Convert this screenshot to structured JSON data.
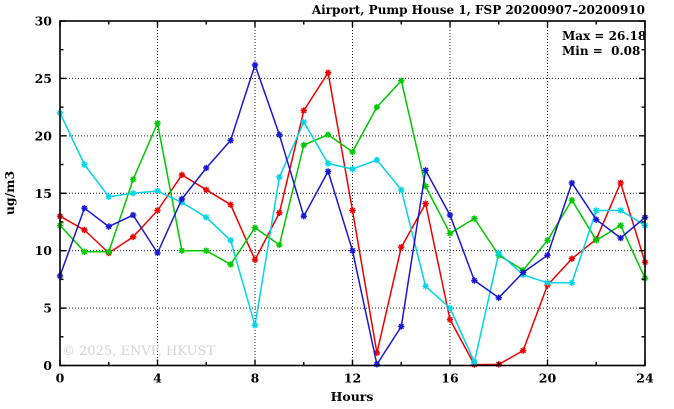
{
  "chart": {
    "title": "Airport, Pump House 1, FSP 20200907–20200910",
    "stats": {
      "max_label": "Max = 26.18",
      "min_label": "Min =  0.08"
    },
    "ylabel": "ug/m3",
    "xlabel": "Hours",
    "watermark": "© 2025, ENVF, HKUST"
  },
  "chart_data": {
    "type": "line",
    "title": "Airport, Pump House 1, FSP 20200907–20200910",
    "xlabel": "Hours",
    "ylabel": "ug/m3",
    "xlim": [
      0,
      24
    ],
    "ylim": [
      0,
      30
    ],
    "x_major_ticks": [
      0,
      4,
      8,
      12,
      16,
      20,
      24
    ],
    "x_minor_ticks": [
      2,
      6,
      10,
      14,
      18,
      22
    ],
    "y_major_ticks": [
      0,
      5,
      10,
      15,
      20,
      25,
      30
    ],
    "y_minor_ticks": [
      2.5,
      7.5,
      12.5,
      17.5,
      22.5,
      27.5
    ],
    "grid": true,
    "legend_position": "none",
    "annotations": {
      "max": 26.18,
      "min": 0.08
    },
    "x": [
      0,
      1,
      2,
      3,
      4,
      5,
      6,
      7,
      8,
      9,
      10,
      11,
      12,
      13,
      14,
      15,
      16,
      17,
      18,
      19,
      20,
      21,
      22,
      23,
      24
    ],
    "series": [
      {
        "name": "red",
        "color": "#ee0000",
        "values": [
          13.0,
          11.8,
          9.8,
          11.2,
          13.5,
          16.6,
          15.3,
          14.0,
          9.2,
          13.3,
          22.2,
          25.5,
          13.5,
          1.1,
          10.3,
          14.1,
          4.0,
          0.08,
          0.1,
          1.3,
          7.0,
          9.3,
          11.0,
          15.9,
          9.0
        ]
      },
      {
        "name": "green",
        "color": "#00c800",
        "values": [
          12.2,
          9.9,
          9.9,
          16.2,
          21.1,
          10.0,
          10.0,
          8.8,
          12.0,
          10.5,
          19.2,
          20.1,
          18.6,
          22.5,
          24.8,
          15.6,
          11.5,
          12.8,
          9.6,
          8.3,
          10.9,
          14.4,
          10.9,
          12.2,
          7.6
        ]
      },
      {
        "name": "cyan",
        "color": "#00d5e5",
        "values": [
          22.0,
          17.5,
          14.7,
          15.0,
          15.2,
          14.2,
          12.9,
          10.9,
          3.5,
          16.4,
          21.2,
          17.6,
          17.1,
          17.9,
          15.3,
          6.9,
          5.0,
          0.3,
          9.8,
          7.9,
          7.2,
          7.2,
          13.5,
          13.5,
          12.2
        ]
      },
      {
        "name": "blue",
        "color": "#1818d2",
        "values": [
          7.8,
          13.7,
          12.1,
          13.1,
          9.8,
          14.5,
          17.2,
          19.6,
          26.18,
          20.1,
          13.0,
          16.9,
          10.0,
          0.1,
          3.4,
          17.0,
          13.1,
          7.4,
          5.9,
          8.1,
          9.6,
          15.9,
          12.7,
          11.1,
          12.9
        ]
      }
    ]
  }
}
